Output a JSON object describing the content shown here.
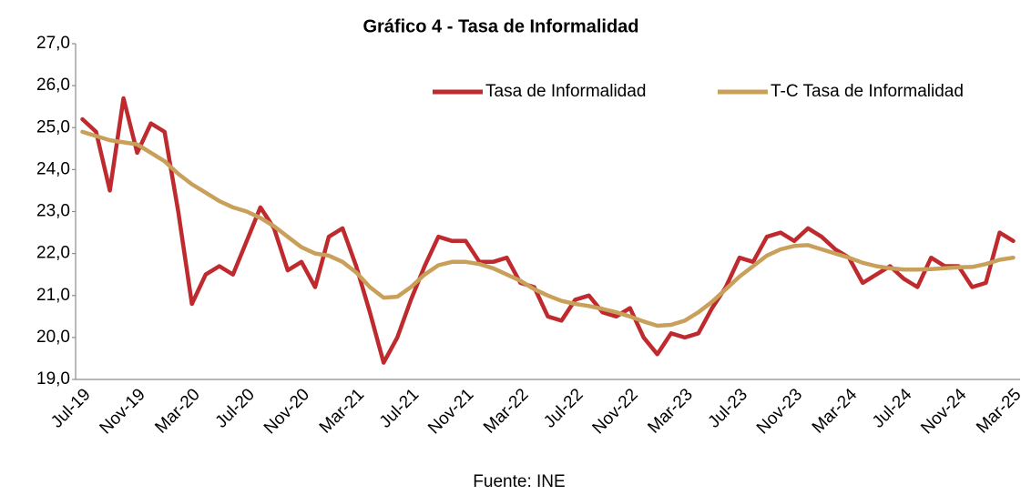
{
  "chart_data": {
    "type": "line",
    "title": "Gráfico 4 - Tasa de Informalidad",
    "annotation": "Fuente: INE",
    "categories": [
      "Jul-19",
      null,
      null,
      null,
      "Nov-19",
      null,
      null,
      null,
      "Mar-20",
      null,
      null,
      null,
      "Jul-20",
      null,
      null,
      null,
      "Nov-20",
      null,
      null,
      null,
      "Mar-21",
      null,
      null,
      null,
      "Jul-21",
      null,
      null,
      null,
      "Nov-21",
      null,
      null,
      null,
      "Mar-22",
      null,
      null,
      null,
      "Jul-22",
      null,
      null,
      null,
      "Nov-22",
      null,
      null,
      null,
      "Mar-23",
      null,
      null,
      null,
      "Jul-23",
      null,
      null,
      null,
      "Nov-23",
      null,
      null,
      null,
      "Mar-24",
      null,
      null,
      null,
      "Jul-24",
      null,
      null,
      null,
      "Nov-24",
      null,
      null,
      null,
      "Mar-25"
    ],
    "series": [
      {
        "name": "Tasa de Informalidad",
        "color": "#be2a2e",
        "values": [
          25.2,
          24.9,
          23.5,
          25.7,
          24.4,
          25.1,
          24.9,
          23.0,
          20.8,
          21.5,
          21.7,
          21.5,
          22.3,
          23.1,
          22.6,
          21.6,
          21.8,
          21.2,
          22.4,
          22.6,
          21.7,
          20.6,
          19.4,
          20.0,
          20.9,
          21.7,
          22.4,
          22.3,
          22.3,
          21.8,
          21.8,
          21.9,
          21.3,
          21.2,
          20.5,
          20.4,
          20.9,
          21.0,
          20.6,
          20.5,
          20.7,
          20.0,
          19.6,
          20.1,
          20.0,
          20.1,
          20.7,
          21.2,
          21.9,
          21.8,
          22.4,
          22.5,
          22.3,
          22.6,
          22.4,
          22.1,
          21.9,
          21.3,
          21.5,
          21.7,
          21.4,
          21.2,
          21.9,
          21.7,
          21.7,
          21.2,
          21.3,
          22.5,
          22.3
        ]
      },
      {
        "name": "T-C Tasa de Informalidad",
        "color": "#c9a05a",
        "values": [
          24.9,
          24.8,
          24.7,
          24.65,
          24.6,
          24.4,
          24.2,
          23.9,
          23.65,
          23.45,
          23.25,
          23.1,
          23.0,
          22.85,
          22.65,
          22.4,
          22.15,
          22.0,
          21.95,
          21.8,
          21.55,
          21.2,
          20.95,
          20.97,
          21.2,
          21.5,
          21.72,
          21.8,
          21.8,
          21.75,
          21.65,
          21.5,
          21.35,
          21.15,
          21.0,
          20.87,
          20.8,
          20.75,
          20.68,
          20.6,
          20.5,
          20.38,
          20.28,
          20.3,
          20.4,
          20.6,
          20.85,
          21.15,
          21.45,
          21.7,
          21.95,
          22.1,
          22.18,
          22.2,
          22.1,
          22.0,
          21.9,
          21.78,
          21.7,
          21.65,
          21.62,
          21.62,
          21.63,
          21.65,
          21.67,
          21.68,
          21.75,
          21.85,
          21.9
        ]
      }
    ],
    "ylim": [
      19,
      27
    ],
    "yticks": [
      {
        "value": 19,
        "label": "19,0"
      },
      {
        "value": 20,
        "label": "20,0"
      },
      {
        "value": 21,
        "label": "21,0"
      },
      {
        "value": 22,
        "label": "22,0"
      },
      {
        "value": 23,
        "label": "23,0"
      },
      {
        "value": 24,
        "label": "24,0"
      },
      {
        "value": 25,
        "label": "25,0"
      },
      {
        "value": 26,
        "label": "26,0"
      },
      {
        "value": 27,
        "label": "27,0"
      }
    ],
    "grid": false,
    "legend": "top-right"
  }
}
